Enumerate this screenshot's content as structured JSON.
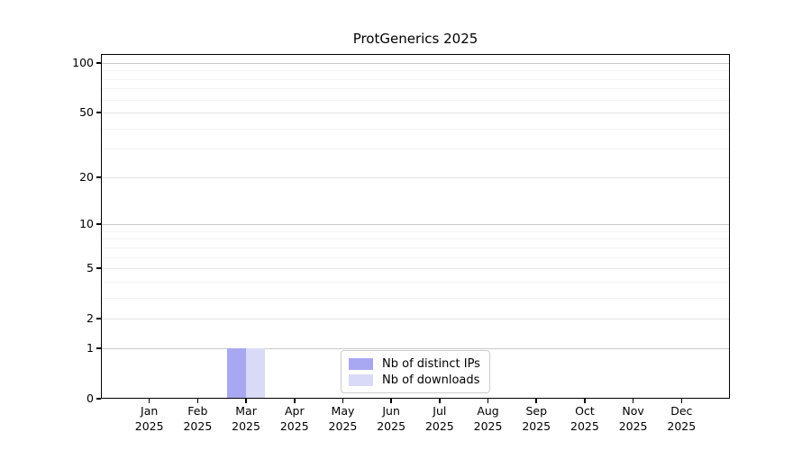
{
  "chart_data": {
    "type": "bar",
    "title": "ProtGenerics 2025",
    "categories": [
      "Jan",
      "Feb",
      "Mar",
      "Apr",
      "May",
      "Jun",
      "Jul",
      "Aug",
      "Sep",
      "Oct",
      "Nov",
      "Dec"
    ],
    "year": "2025",
    "series": [
      {
        "name": "Nb of distinct IPs",
        "color": "#a8a8f2",
        "values": [
          0,
          0,
          1,
          0,
          0,
          0,
          0,
          0,
          0,
          0,
          0,
          0
        ]
      },
      {
        "name": "Nb of downloads",
        "color": "#d9d9f8",
        "values": [
          0,
          0,
          1,
          0,
          0,
          0,
          0,
          0,
          0,
          0,
          0,
          0
        ]
      }
    ],
    "yticks": [
      0,
      1,
      2,
      5,
      10,
      20,
      50,
      100
    ],
    "ylim": [
      0,
      113
    ],
    "yscale": "log1p",
    "grid": true,
    "legend_position": "inside-bottom-center",
    "colors": {
      "axis": "#000000",
      "grid_major": "#c9c9c9",
      "grid_mid": "#e4e4e4",
      "grid_minor": "#f3f3f3",
      "background": "#ffffff"
    }
  }
}
